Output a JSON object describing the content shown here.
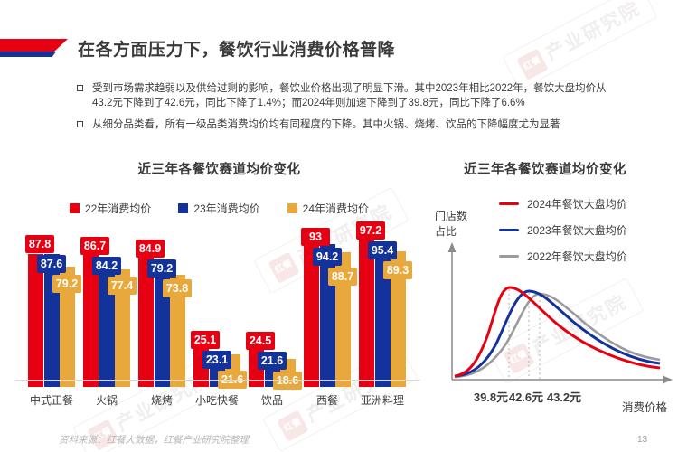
{
  "header": {
    "title": "在各方面压力下，餐饮行业消费价格普降",
    "accent_red": "#e60012",
    "accent_blue": "#14329b"
  },
  "bullets": [
    "受到市场需求趋弱以及供给过剩的影响，餐饮业价格出现了明显下滑。其中2023年相比2022年，餐饮大盘均价从43.2元下降到了42.6元，同比下降了1.4%；而2024年则加速下降到了39.8元，同比下降了6.6%",
    "从细分品类看，所有一级品类消费均价均有同程度的下降。其中火锅、烧烤、饮品的下降幅度尤为显著"
  ],
  "chart_data": [
    {
      "type": "bar",
      "title": "近三年各餐饮赛道均价变化",
      "categories": [
        "中式正餐",
        "火锅",
        "烧烤",
        "小吃快餐",
        "饮品",
        "西餐",
        "亚洲料理"
      ],
      "series": [
        {
          "name": "22年消费均价",
          "color": "#e60012",
          "values": [
            87.8,
            86.7,
            84.9,
            25.1,
            24.5,
            93,
            97.2
          ]
        },
        {
          "name": "23年消费均价",
          "color": "#14329b",
          "values": [
            87.6,
            84.2,
            79.2,
            23.1,
            21.6,
            94.2,
            95.4
          ]
        },
        {
          "name": "24年消费均价",
          "color": "#e9a83c",
          "values": [
            79.2,
            77.4,
            73.8,
            21.6,
            18.6,
            88.7,
            89.3
          ]
        }
      ],
      "ylim": [
        0,
        100
      ],
      "value_labels": "on",
      "legend_position": "top"
    },
    {
      "type": "line",
      "title": "近三年各餐饮赛道均价变化",
      "ylabel": "门店数占比",
      "ylabel_lines": [
        "门店数",
        "占比"
      ],
      "xlabel": "消费价格",
      "series": [
        {
          "name": "2024年餐饮大盘均价",
          "color": "#e60012",
          "peak_label": "39.8元"
        },
        {
          "name": "2023年餐饮大盘均价",
          "color": "#14329b",
          "peak_label": "42.6元"
        },
        {
          "name": "2022年餐饮大盘均价",
          "color": "#9b9b9b",
          "peak_label": "43.2元"
        }
      ],
      "x_tick_labels": [
        "39.8元",
        "42.6元",
        "43.2元"
      ],
      "legend_position": "top-right",
      "grid": "off",
      "shape": "right-skewed density curves with dotted peak markers"
    }
  ],
  "footer": {
    "source": "资料来源：红餐大数据，红餐产业研究院整理",
    "page": "13"
  },
  "watermark": {
    "logo": "红餐",
    "text": "产业研究院"
  }
}
